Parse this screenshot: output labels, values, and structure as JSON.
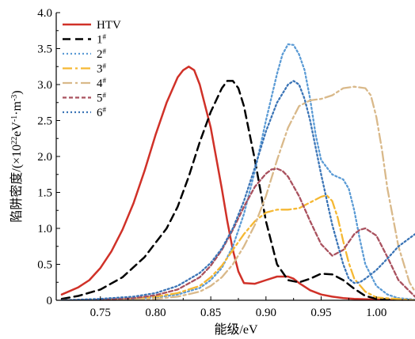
{
  "chart_data": {
    "type": "line",
    "title": "",
    "xlabel": "能级/eV",
    "ylabel_prefix": "陷阱密度/(×10",
    "ylabel_exp1": "22",
    "ylabel_mid": "eV",
    "ylabel_exp2": "-1",
    "ylabel_mid2": "·m",
    "ylabel_exp3": "-3",
    "ylabel_suffix": ")",
    "xlim": [
      0.71,
      1.035
    ],
    "ylim": [
      0,
      4.0
    ],
    "xticks": [
      "0.75",
      "0.80",
      "0.85",
      "0.90",
      "0.95",
      "1.00"
    ],
    "yticks": [
      "0",
      "0.5",
      "1.0",
      "1.5",
      "2.0",
      "2.5",
      "3.0",
      "3.5",
      "4.0"
    ],
    "legend_position": "top-left",
    "grid": false,
    "series": [
      {
        "name": "HTV",
        "sup": "",
        "color": "#d03128",
        "dash": "",
        "width": 2.5,
        "x": [
          0.715,
          0.73,
          0.74,
          0.75,
          0.76,
          0.77,
          0.78,
          0.79,
          0.8,
          0.81,
          0.82,
          0.825,
          0.83,
          0.835,
          0.84,
          0.85,
          0.86,
          0.865,
          0.87,
          0.875,
          0.88,
          0.89,
          0.9,
          0.91,
          0.92,
          0.925,
          0.93,
          0.94,
          0.95,
          0.96,
          0.97,
          0.98,
          1.0,
          1.035
        ],
        "y": [
          0.08,
          0.18,
          0.28,
          0.45,
          0.68,
          0.98,
          1.35,
          1.8,
          2.3,
          2.75,
          3.1,
          3.2,
          3.25,
          3.2,
          3.0,
          2.4,
          1.55,
          1.1,
          0.7,
          0.4,
          0.24,
          0.23,
          0.28,
          0.33,
          0.33,
          0.3,
          0.24,
          0.14,
          0.08,
          0.05,
          0.03,
          0.02,
          0.01,
          0.0
        ]
      },
      {
        "name": "1",
        "sup": "#",
        "color": "#000000",
        "dash": "10,6",
        "width": 2.5,
        "x": [
          0.715,
          0.73,
          0.75,
          0.77,
          0.79,
          0.81,
          0.82,
          0.83,
          0.84,
          0.85,
          0.86,
          0.865,
          0.87,
          0.875,
          0.88,
          0.89,
          0.9,
          0.91,
          0.92,
          0.93,
          0.94,
          0.95,
          0.96,
          0.97,
          0.98,
          0.99,
          1.0,
          1.035
        ],
        "y": [
          0.02,
          0.06,
          0.15,
          0.32,
          0.6,
          1.0,
          1.3,
          1.72,
          2.2,
          2.62,
          2.95,
          3.05,
          3.05,
          2.95,
          2.7,
          1.95,
          1.1,
          0.5,
          0.28,
          0.25,
          0.3,
          0.37,
          0.36,
          0.28,
          0.16,
          0.06,
          0.02,
          0.0
        ]
      },
      {
        "name": "2",
        "sup": "#",
        "color": "#5b9bd5",
        "dash": "2,3",
        "width": 2.3,
        "x": [
          0.715,
          0.75,
          0.78,
          0.8,
          0.82,
          0.84,
          0.85,
          0.86,
          0.87,
          0.88,
          0.89,
          0.9,
          0.91,
          0.915,
          0.92,
          0.925,
          0.93,
          0.935,
          0.94,
          0.945,
          0.95,
          0.96,
          0.97,
          0.975,
          0.98,
          0.985,
          0.99,
          1.0,
          1.01,
          1.02,
          1.035
        ],
        "y": [
          0.0,
          0.01,
          0.02,
          0.04,
          0.08,
          0.17,
          0.28,
          0.45,
          0.75,
          1.2,
          1.8,
          2.5,
          3.15,
          3.42,
          3.56,
          3.55,
          3.42,
          3.2,
          2.8,
          2.3,
          1.95,
          1.75,
          1.68,
          1.55,
          1.25,
          0.85,
          0.5,
          0.2,
          0.08,
          0.03,
          0.01
        ]
      },
      {
        "name": "3",
        "sup": "#",
        "color": "#f5b833",
        "dash": "12,4,3,4",
        "width": 2.3,
        "x": [
          0.715,
          0.75,
          0.78,
          0.8,
          0.82,
          0.84,
          0.85,
          0.86,
          0.87,
          0.88,
          0.89,
          0.9,
          0.91,
          0.92,
          0.93,
          0.94,
          0.95,
          0.955,
          0.96,
          0.965,
          0.97,
          0.975,
          0.98,
          0.99,
          1.0,
          1.035
        ],
        "y": [
          0.0,
          0.01,
          0.02,
          0.05,
          0.1,
          0.2,
          0.32,
          0.48,
          0.7,
          0.92,
          1.1,
          1.22,
          1.26,
          1.26,
          1.28,
          1.36,
          1.44,
          1.46,
          1.38,
          1.15,
          0.82,
          0.52,
          0.3,
          0.12,
          0.04,
          0.0
        ]
      },
      {
        "name": "4",
        "sup": "#",
        "color": "#d9b98a",
        "dash": "12,4,3,4",
        "width": 2.3,
        "x": [
          0.715,
          0.75,
          0.78,
          0.8,
          0.82,
          0.84,
          0.85,
          0.86,
          0.87,
          0.88,
          0.89,
          0.9,
          0.91,
          0.92,
          0.93,
          0.94,
          0.95,
          0.96,
          0.97,
          0.98,
          0.99,
          0.995,
          1.0,
          1.005,
          1.01,
          1.02,
          1.03,
          1.035
        ],
        "y": [
          0.0,
          0.0,
          0.01,
          0.02,
          0.05,
          0.12,
          0.2,
          0.32,
          0.5,
          0.75,
          1.05,
          1.45,
          1.95,
          2.4,
          2.7,
          2.78,
          2.8,
          2.85,
          2.95,
          2.97,
          2.95,
          2.85,
          2.55,
          2.1,
          1.55,
          0.75,
          0.25,
          0.12
        ]
      },
      {
        "name": "5",
        "sup": "#",
        "color": "#a9515e",
        "dash": "5,3",
        "width": 2.3,
        "x": [
          0.715,
          0.75,
          0.78,
          0.8,
          0.82,
          0.84,
          0.85,
          0.86,
          0.87,
          0.88,
          0.89,
          0.9,
          0.905,
          0.91,
          0.915,
          0.92,
          0.93,
          0.94,
          0.95,
          0.96,
          0.97,
          0.98,
          0.985,
          0.99,
          1.0,
          1.01,
          1.02,
          1.035
        ],
        "y": [
          0.0,
          0.01,
          0.03,
          0.07,
          0.15,
          0.32,
          0.48,
          0.7,
          0.98,
          1.3,
          1.58,
          1.76,
          1.82,
          1.83,
          1.8,
          1.72,
          1.45,
          1.1,
          0.78,
          0.62,
          0.7,
          0.92,
          0.98,
          1.0,
          0.9,
          0.6,
          0.28,
          0.05
        ]
      },
      {
        "name": "6",
        "sup": "#",
        "color": "#3a74b6",
        "dash": "2,3",
        "width": 2.3,
        "x": [
          0.715,
          0.75,
          0.78,
          0.8,
          0.82,
          0.84,
          0.85,
          0.86,
          0.87,
          0.88,
          0.89,
          0.9,
          0.91,
          0.92,
          0.925,
          0.93,
          0.935,
          0.94,
          0.95,
          0.96,
          0.97,
          0.975,
          0.98,
          0.985,
          0.99,
          1.0,
          1.01,
          1.02,
          1.035
        ],
        "y": [
          0.0,
          0.02,
          0.05,
          0.1,
          0.2,
          0.38,
          0.52,
          0.72,
          1.0,
          1.38,
          1.85,
          2.35,
          2.75,
          3.0,
          3.05,
          3.0,
          2.8,
          2.5,
          1.75,
          1.05,
          0.5,
          0.3,
          0.24,
          0.25,
          0.3,
          0.42,
          0.58,
          0.75,
          0.92
        ]
      }
    ]
  }
}
